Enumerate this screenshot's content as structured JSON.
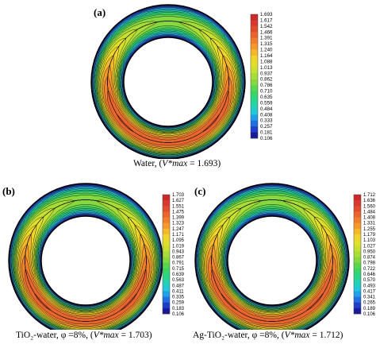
{
  "figure": {
    "panels": [
      {
        "id": "a",
        "tag": "(a)",
        "caption_prefix": "Water, (",
        "caption_vmax_symbol": "V*max",
        "caption_suffix": " = 1.693)",
        "vmax": 1.693,
        "colorbar_ticks": [
          "1.693",
          "1.617",
          "1.542",
          "1.466",
          "1.391",
          "1.315",
          "1.240",
          "1.164",
          "1.088",
          "1.013",
          "0.937",
          "0.862",
          "0.786",
          "0.710",
          "0.635",
          "0.559",
          "0.484",
          "0.408",
          "0.333",
          "0.257",
          "0.181",
          "0.106"
        ]
      },
      {
        "id": "b",
        "tag": "(b)",
        "caption_prefix": "TiO₂-water, φ =8%, (",
        "caption_vmax_symbol": "V*max",
        "caption_suffix": " = 1.703)",
        "vmax": 1.703,
        "colorbar_ticks": [
          "1.703",
          "1.627",
          "1.551",
          "1.475",
          "1.399",
          "1.323",
          "1.247",
          "1.171",
          "1.095",
          "1.019",
          "0.943",
          "0.867",
          "0.791",
          "0.715",
          "0.639",
          "0.563",
          "0.487",
          "0.411",
          "0.335",
          "0.259",
          "0.183",
          "0.106"
        ]
      },
      {
        "id": "c",
        "tag": "(c)",
        "caption_prefix": "Ag-TiO₂-water, φ =8%, (",
        "caption_vmax_symbol": "V*max",
        "caption_suffix": " = 1.712)",
        "vmax": 1.712,
        "colorbar_ticks": [
          "1.712",
          "1.636",
          "1.560",
          "1.484",
          "1.408",
          "1.331",
          "1.255",
          "1.179",
          "1.103",
          "1.027",
          "0.950",
          "0.874",
          "0.798",
          "0.722",
          "0.646",
          "0.570",
          "0.493",
          "0.417",
          "0.341",
          "0.265",
          "0.189",
          "0.106"
        ]
      }
    ],
    "colormap": [
      "#1b1b9a",
      "#1e3fc8",
      "#1f6fe0",
      "#1fa0e8",
      "#22c8d8",
      "#23d2b0",
      "#27d68a",
      "#38d66a",
      "#5ad64e",
      "#86d83e",
      "#a8dc36",
      "#c8e030",
      "#e0e02c",
      "#f0d42a",
      "#f5b82a",
      "#f59a2a",
      "#f07e2c",
      "#ea642e",
      "#e24c2e",
      "#d8382e",
      "#cc2a2a"
    ]
  }
}
